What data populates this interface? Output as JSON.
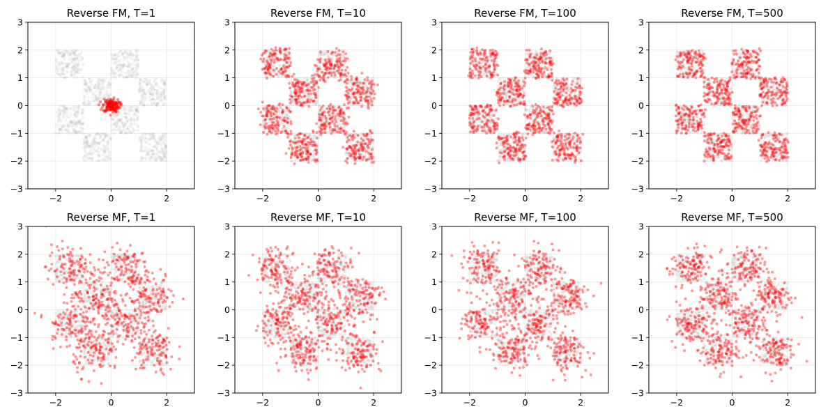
{
  "chart_data": {
    "type": "scatter",
    "grid": true,
    "xlim": [
      -3,
      3
    ],
    "ylim": [
      -3,
      3
    ],
    "xticks": [
      "−2",
      "0",
      "2"
    ],
    "yticks": [
      "−3",
      "−2",
      "−1",
      "0",
      "1",
      "2",
      "3"
    ],
    "colors": {
      "target": "#999999",
      "generated": "#ff0000"
    },
    "checkerboard_cells": [
      {
        "x": [
          -2,
          -1
        ],
        "y": [
          1,
          2
        ]
      },
      {
        "x": [
          0,
          1
        ],
        "y": [
          1,
          2
        ]
      },
      {
        "x": [
          -1,
          0
        ],
        "y": [
          0,
          1
        ]
      },
      {
        "x": [
          1,
          2
        ],
        "y": [
          0,
          1
        ]
      },
      {
        "x": [
          -2,
          -1
        ],
        "y": [
          -1,
          0
        ]
      },
      {
        "x": [
          0,
          1
        ],
        "y": [
          -1,
          0
        ]
      },
      {
        "x": [
          -1,
          0
        ],
        "y": [
          -2,
          -1
        ]
      },
      {
        "x": [
          1,
          2
        ],
        "y": [
          -2,
          -1
        ]
      }
    ],
    "panels": [
      {
        "title": "Reverse FM, T=1",
        "quality": "collapsed",
        "collapse_center": [
          0.0,
          0.0
        ],
        "collapse_radius": 0.3
      },
      {
        "title": "Reverse FM, T=10",
        "quality": "good",
        "noise": 0.08
      },
      {
        "title": "Reverse FM, T=100",
        "quality": "good",
        "noise": 0.04
      },
      {
        "title": "Reverse FM, T=500",
        "quality": "good",
        "noise": 0.03
      },
      {
        "title": "Reverse MF, T=1",
        "quality": "noisy",
        "noise": 0.35
      },
      {
        "title": "Reverse MF, T=10",
        "quality": "noisy",
        "noise": 0.28
      },
      {
        "title": "Reverse MF, T=100",
        "quality": "noisy",
        "noise": 0.25
      },
      {
        "title": "Reverse MF, T=500",
        "quality": "noisy",
        "noise": 0.22
      }
    ]
  }
}
